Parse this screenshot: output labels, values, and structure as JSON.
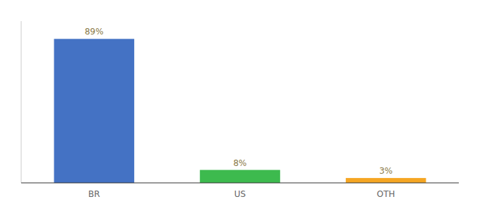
{
  "chart_data": {
    "type": "bar",
    "categories": [
      "BR",
      "US",
      "OTH"
    ],
    "values": [
      89,
      8,
      3
    ],
    "value_labels": [
      "89%",
      "8%",
      "3%"
    ],
    "data_labels": true,
    "colors": [
      "#4472c4",
      "#3dba4e",
      "#f5a623"
    ],
    "ylim": [
      0,
      100
    ],
    "tick_labels": "x",
    "grid": false
  }
}
